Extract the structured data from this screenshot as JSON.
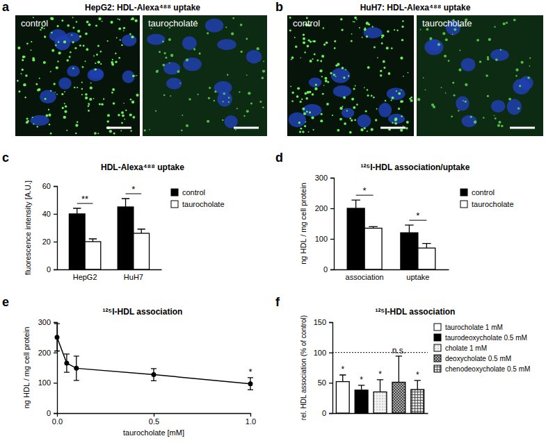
{
  "images": [
    {
      "panel": "a",
      "title": "HepG2: HDL-Alexa⁴⁸⁸ uptake",
      "labels": [
        "control",
        "taurocholate"
      ]
    },
    {
      "panel": "b",
      "title": "HuH7: HDL-Alexa⁴⁸⁸ uptake",
      "labels": [
        "control",
        "taurocholate"
      ]
    }
  ],
  "chart_data": [
    {
      "panel": "c",
      "type": "bar",
      "title": "HDL-Alexa⁴⁸⁸ uptake",
      "y_label": "fluorescence intensity [A.U.]",
      "categories": [
        "HepG2",
        "HuH7"
      ],
      "series": [
        {
          "name": "control",
          "color": "#000000",
          "values": [
            40,
            45
          ],
          "errors": [
            4,
            6
          ]
        },
        {
          "name": "taurocholate",
          "color": "#ffffff",
          "values": [
            20,
            26
          ],
          "errors": [
            2,
            3
          ]
        }
      ],
      "ylim": [
        0,
        60
      ],
      "yticks": [
        0,
        20,
        40,
        60
      ],
      "legend": "right",
      "annotations": [
        {
          "text": "**",
          "category": 0
        },
        {
          "text": "*",
          "category": 1
        }
      ]
    },
    {
      "panel": "d",
      "type": "bar",
      "title": "¹²⁵I-HDL association/uptake",
      "y_label": "ng HDL / mg cell protein",
      "categories": [
        "association",
        "uptake"
      ],
      "series": [
        {
          "name": "control",
          "color": "#000000",
          "values": [
            200,
            120
          ],
          "errors": [
            27,
            25
          ]
        },
        {
          "name": "taurocholate",
          "color": "#ffffff",
          "values": [
            135,
            70
          ],
          "errors": [
            5,
            15
          ]
        }
      ],
      "ylim": [
        0,
        300
      ],
      "yticks": [
        0,
        100,
        200,
        300
      ],
      "legend": "right",
      "annotations": [
        {
          "text": "*",
          "category": 0
        },
        {
          "text": "*",
          "category": 1
        }
      ]
    },
    {
      "panel": "e",
      "type": "line",
      "title": "¹²⁵I-HDL association",
      "y_label": "ng HDL / mg cell protein",
      "x_label": "taurocholate [mM]",
      "x": [
        0,
        0.05,
        0.1,
        0.5,
        1
      ],
      "values": [
        250,
        165,
        148,
        127,
        97
      ],
      "errors": [
        45,
        30,
        40,
        20,
        20
      ],
      "color": "#000000",
      "marker": "circle",
      "line_style": "solid",
      "xlim": [
        0,
        1
      ],
      "xticks": [
        {
          "value": 0,
          "label": "0.0"
        },
        {
          "value": 0.5,
          "label": "0.5"
        },
        {
          "value": 1,
          "label": "1.0"
        }
      ],
      "ylim": [
        0,
        300
      ],
      "yticks": [
        0,
        100,
        200,
        300
      ],
      "annotations": [
        {
          "text": "*",
          "x": 1
        }
      ]
    },
    {
      "panel": "f",
      "type": "bar",
      "title": "¹²⁵I-HDL association",
      "y_label": "rel. HDL association (% of control)",
      "categories": [
        "taurocholate 1 mM",
        "taurodeoxycholate 0.5 mM",
        "cholate 1 mM",
        "deoxycholate 0.5 mM",
        "chenodeoxycholate 0.5 mM"
      ],
      "values": [
        52,
        38,
        35,
        51,
        39
      ],
      "errors": [
        11,
        8,
        20,
        43,
        15
      ],
      "colors": [
        "#ffffff",
        "#000000",
        "#f2f2f2",
        "#b0b0b0",
        "#e2e2e2"
      ],
      "significance": [
        "*",
        "*",
        "*",
        "n.s.",
        "*"
      ],
      "reference_line": 100,
      "ylim": [
        0,
        150
      ],
      "yticks": [
        0,
        50,
        100,
        150
      ],
      "tick_labels": "y",
      "legend": "right"
    }
  ]
}
